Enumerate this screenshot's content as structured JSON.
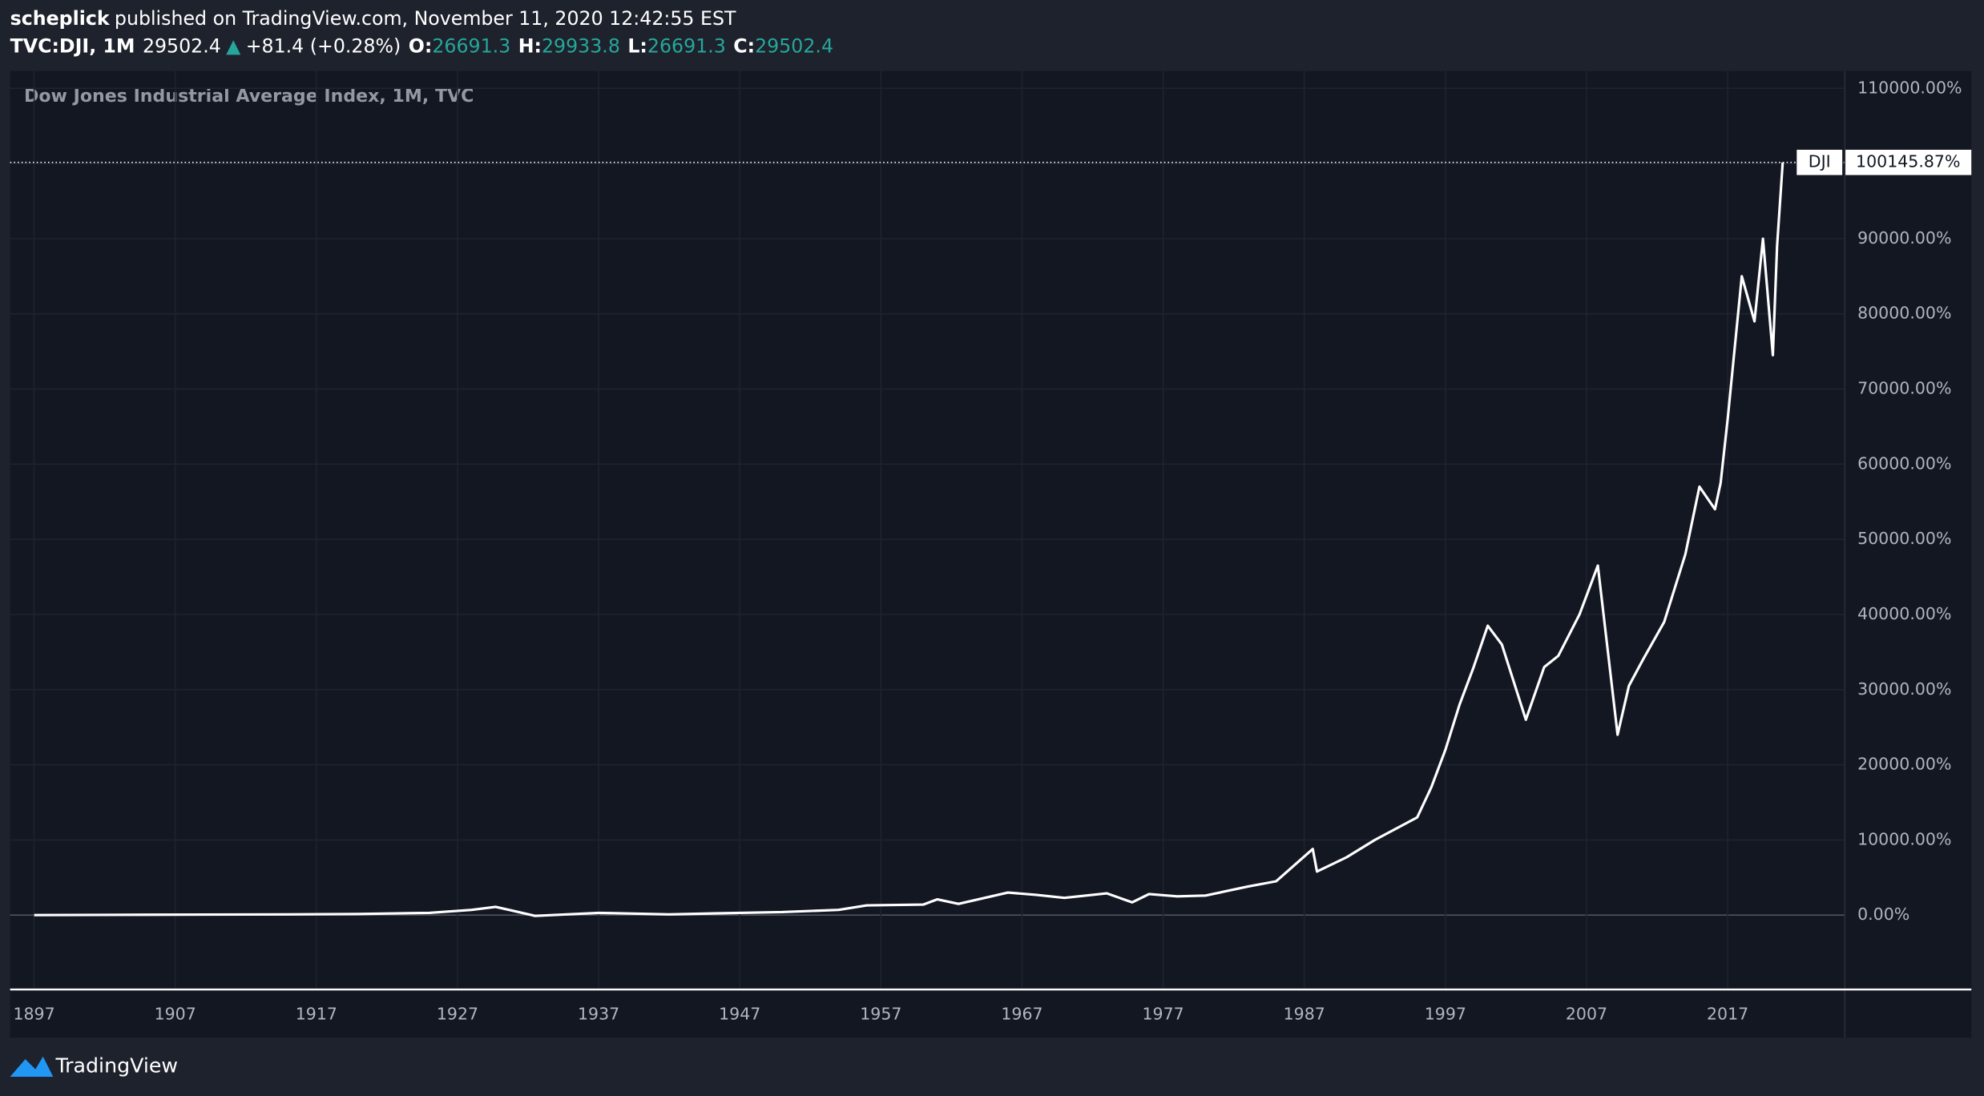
{
  "header": {
    "user": "scheplick",
    "published": "published on TradingView.com, November 11, 2020 12:42:55 EST"
  },
  "symbol_bar": {
    "symbol": "TVC:DJI, 1M",
    "price": "29502.4",
    "arrow": "▲",
    "change": "+81.4 (+0.28%)",
    "o_label": "O:",
    "o": "26691.3",
    "h_label": "H:",
    "h": "29933.8",
    "l_label": "L:",
    "l": "26691.3",
    "c_label": "C:",
    "c": "29502.4"
  },
  "chart_data": {
    "type": "line",
    "title": "Dow Jones Industrial Average Index, 1M, TVC",
    "x": [
      1897,
      1905,
      1915,
      1920,
      1925,
      1928,
      1929.7,
      1932.5,
      1937,
      1942,
      1947,
      1950,
      1954,
      1956,
      1960,
      1961,
      1962.5,
      1966,
      1968,
      1970,
      1973,
      1974.8,
      1976,
      1978,
      1980,
      1983,
      1985,
      1987.6,
      1987.9,
      1990,
      1992,
      1995,
      1996,
      1997,
      1998,
      1999,
      2000,
      2001,
      2002.7,
      2004,
      2005,
      2006.5,
      2007.8,
      2009.2,
      2010,
      2011,
      2012.5,
      2014,
      2015,
      2016.1,
      2016.5,
      2017,
      2018,
      2018.9,
      2019.5,
      2020.2,
      2020.5,
      2020.9
    ],
    "series": [
      {
        "name": "DJI",
        "color": "#ffffff",
        "values": [
          0,
          50,
          100,
          150,
          300,
          700,
          1100,
          -100,
          300,
          100,
          300,
          400,
          700,
          1300,
          1400,
          2100,
          1500,
          3000,
          2700,
          2300,
          2900,
          1700,
          2800,
          2500,
          2600,
          3800,
          4500,
          8800,
          5800,
          7700,
          10000,
          13000,
          17000,
          22000,
          28000,
          33000,
          38500,
          36000,
          26000,
          33000,
          34500,
          40000,
          46500,
          24000,
          30500,
          34000,
          39000,
          48000,
          57000,
          54000,
          57500,
          66000,
          85000,
          79000,
          90000,
          74500,
          89000,
          100145.87
        ]
      }
    ],
    "last_label": "100145.87%",
    "xlim": [
      1895.3,
      2025.3
    ],
    "ylim": [
      -9900,
      112300
    ],
    "xticks": [
      1897,
      1907,
      1917,
      1927,
      1937,
      1947,
      1957,
      1967,
      1977,
      1987,
      1997,
      2007,
      2017
    ],
    "yticks": [
      {
        "value": 0,
        "label": "0.00%"
      },
      {
        "value": 10000,
        "label": "10000.00%"
      },
      {
        "value": 20000,
        "label": "20000.00%"
      },
      {
        "value": 30000,
        "label": "30000.00%"
      },
      {
        "value": 40000,
        "label": "40000.00%"
      },
      {
        "value": 50000,
        "label": "50000.00%"
      },
      {
        "value": 60000,
        "label": "60000.00%"
      },
      {
        "value": 70000,
        "label": "70000.00%"
      },
      {
        "value": 80000,
        "label": "80000.00%"
      },
      {
        "value": 90000,
        "label": "90000.00%"
      },
      {
        "value": 100000,
        "label": "100000.00%"
      },
      {
        "value": 110000,
        "label": "110000.00%"
      }
    ],
    "grid": true
  },
  "footer": {
    "brand": "TradingView"
  }
}
